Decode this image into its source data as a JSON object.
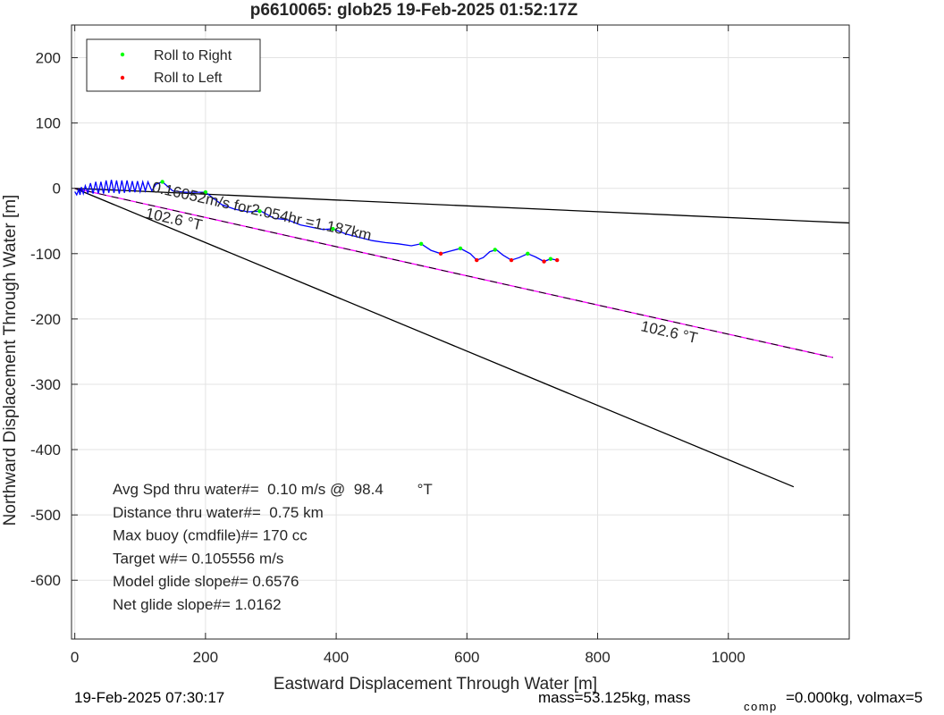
{
  "chart_data": {
    "type": "line",
    "title": "p6610065: glob25 19-Feb-2025 01:52:17Z",
    "xlabel": "Eastward Displacement Through Water [m]",
    "ylabel": "Northward Displacement Through Water [m]",
    "xlim": [
      -5,
      1185
    ],
    "ylim": [
      -690,
      250
    ],
    "x_ticks": [
      0,
      200,
      400,
      600,
      800,
      1000
    ],
    "y_ticks": [
      200,
      100,
      0,
      -100,
      -200,
      -300,
      -400,
      -500,
      -600
    ],
    "grid": true,
    "legend": {
      "placement": "top-left",
      "entries": [
        {
          "label": "Roll to Right",
          "color": "#00ff00"
        },
        {
          "label": "Roll to Left",
          "color": "#ff0000"
        }
      ]
    },
    "track": {
      "color": "#0000ff",
      "points": [
        [
          0,
          -5
        ],
        [
          3,
          -10
        ],
        [
          6,
          -2
        ],
        [
          8,
          -10
        ],
        [
          10,
          2
        ],
        [
          13,
          -8
        ],
        [
          16,
          4
        ],
        [
          20,
          -7
        ],
        [
          24,
          8
        ],
        [
          28,
          -8
        ],
        [
          32,
          10
        ],
        [
          36,
          -8
        ],
        [
          40,
          10
        ],
        [
          44,
          -8
        ],
        [
          48,
          12
        ],
        [
          52,
          -7
        ],
        [
          56,
          13
        ],
        [
          60,
          -7
        ],
        [
          64,
          12
        ],
        [
          68,
          -8
        ],
        [
          72,
          12
        ],
        [
          76,
          -7
        ],
        [
          80,
          12
        ],
        [
          84,
          -6
        ],
        [
          88,
          11
        ],
        [
          92,
          -6
        ],
        [
          96,
          11
        ],
        [
          100,
          -5
        ],
        [
          104,
          10
        ],
        [
          108,
          -4
        ],
        [
          112,
          10
        ],
        [
          118,
          -4
        ],
        [
          124,
          6
        ],
        [
          134,
          10
        ],
        [
          150,
          -4
        ],
        [
          170,
          -6
        ],
        [
          200,
          -6
        ],
        [
          225,
          -25
        ],
        [
          245,
          -32
        ],
        [
          265,
          -36
        ],
        [
          285,
          -35
        ],
        [
          305,
          -46
        ],
        [
          325,
          -48
        ],
        [
          345,
          -56
        ],
        [
          365,
          -60
        ],
        [
          380,
          -63
        ],
        [
          395,
          -62
        ],
        [
          415,
          -70
        ],
        [
          435,
          -75
        ],
        [
          455,
          -80
        ],
        [
          475,
          -83
        ],
        [
          495,
          -85
        ],
        [
          515,
          -88
        ],
        [
          530,
          -85
        ],
        [
          545,
          -95
        ],
        [
          560,
          -100
        ],
        [
          575,
          -96
        ],
        [
          590,
          -92
        ],
        [
          605,
          -100
        ],
        [
          615,
          -110
        ],
        [
          625,
          -106
        ],
        [
          635,
          -97
        ],
        [
          645,
          -94
        ],
        [
          655,
          -102
        ],
        [
          668,
          -110
        ],
        [
          680,
          -106
        ],
        [
          693,
          -100
        ],
        [
          705,
          -105
        ],
        [
          718,
          -112
        ],
        [
          728,
          -108
        ],
        [
          738,
          -110
        ]
      ]
    },
    "roll_right": [
      [
        134,
        10
      ],
      [
        200,
        -6
      ],
      [
        283,
        -35
      ],
      [
        395,
        -62
      ],
      [
        530,
        -85
      ],
      [
        590,
        -92
      ],
      [
        643,
        -94
      ],
      [
        693,
        -100
      ],
      [
        728,
        -108
      ]
    ],
    "roll_left": [
      [
        560,
        -100
      ],
      [
        615,
        -110
      ],
      [
        668,
        -110
      ],
      [
        718,
        -112
      ],
      [
        738,
        -110
      ]
    ],
    "reference_lines": [
      {
        "color": "#000000",
        "from": [
          0,
          0
        ],
        "to": [
          1185,
          -53
        ]
      },
      {
        "color": "#000000",
        "from": [
          0,
          0
        ],
        "to": [
          1100,
          -457
        ]
      },
      {
        "color": "#ff00ff",
        "from": [
          0,
          0
        ],
        "to": [
          1160,
          -259
        ]
      }
    ],
    "annotations": [
      {
        "text": "0.16052m/s for2.054hr =1.187km",
        "x": 117,
        "y": -5,
        "rotate": 12.6
      },
      {
        "text": "102.6  °T",
        "x": 107,
        "y": -45,
        "rotate": 12.6
      },
      {
        "text": "102.6  °T",
        "x": 865,
        "y": -218,
        "rotate": 12.6
      }
    ],
    "stats": [
      "Avg Spd thru water#=  0.10 m/s @  98.4        °T",
      "Distance thru water#=  0.75 km",
      "Max buoy (cmdfile)#= 170 cc",
      "Target w#= 0.105556 m/s",
      "Model glide slope#= 0.6576",
      "Net glide slope#= 1.0162"
    ]
  },
  "footer": {
    "timestamp": "19-Feb-2025 07:30:17",
    "mass_text": "mass=53.125kg, mass",
    "sub_text": "comp",
    "mass_tail": "=0.000kg, volmax=5"
  }
}
